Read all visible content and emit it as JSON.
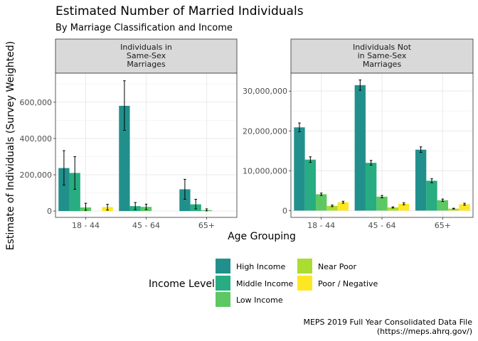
{
  "chart_data": {
    "type": "bar",
    "title": "Estimated Number of Married Individuals",
    "subtitle": "By Marriage Classification and Income",
    "xlabel": "Age Grouping",
    "ylabel": "Estimate of Individuals (Survey Weighted)",
    "caption": [
      "MEPS 2019 Full Year Consolidated Data File",
      "(https://meps.ahrq.gov/)"
    ],
    "legend": {
      "title": "Income Level",
      "placement": "bottom",
      "items": [
        "High Income",
        "Middle Income",
        "Low Income",
        "Near Poor",
        "Poor / Negative"
      ]
    },
    "colors": {
      "High Income": "#21908C",
      "Middle Income": "#27AD81",
      "Low Income": "#5DC863",
      "Near Poor": "#AADC32",
      "Poor / Negative": "#FDE725"
    },
    "categories": [
      "18 - 44",
      "45 - 64",
      "65+"
    ],
    "grid": true,
    "panels": [
      {
        "strip": [
          "Individuals in",
          "Same-Sex",
          "Marriages"
        ],
        "ylim": [
          -35000,
          760000
        ],
        "yticks": [
          0,
          200000,
          400000,
          600000
        ],
        "yticklabels": [
          "0",
          "200,000",
          "400,000",
          "600,000"
        ],
        "series": [
          {
            "name": "High Income",
            "values": [
              237000,
              580000,
              120000
            ],
            "err_low": [
              143000,
              445000,
              65000
            ],
            "err_high": [
              333000,
              718000,
              175000
            ]
          },
          {
            "name": "Middle Income",
            "values": [
              210000,
              27000,
              37000
            ],
            "err_low": [
              120000,
              8000,
              12000
            ],
            "err_high": [
              300000,
              47000,
              65000
            ]
          },
          {
            "name": "Low Income",
            "values": [
              20000,
              23000,
              5000
            ],
            "err_low": [
              4000,
              8000,
              1000
            ],
            "err_high": [
              43000,
              38000,
              12000
            ]
          },
          {
            "name": "Near Poor",
            "values": [
              0,
              0,
              0
            ],
            "err_low": [
              0,
              0,
              0
            ],
            "err_high": [
              0,
              0,
              0
            ]
          },
          {
            "name": "Poor / Negative",
            "values": [
              22000,
              0,
              0
            ],
            "err_low": [
              5000,
              0,
              0
            ],
            "err_high": [
              37000,
              0,
              0
            ]
          }
        ]
      },
      {
        "strip": [
          "Individuals Not",
          "in Same-Sex",
          "Marriages"
        ],
        "ylim": [
          -1700000,
          34500000
        ],
        "yticks": [
          0,
          10000000,
          20000000,
          30000000
        ],
        "yticklabels": [
          "0",
          "10,000,000",
          "20,000,000",
          "30,000,000"
        ],
        "series": [
          {
            "name": "High Income",
            "values": [
              20900000,
              31500000,
              15300000
            ],
            "err_low": [
              19800000,
              30200000,
              14600000
            ],
            "err_high": [
              22000000,
              32800000,
              16000000
            ]
          },
          {
            "name": "Middle Income",
            "values": [
              12800000,
              12000000,
              7500000
            ],
            "err_low": [
              12100000,
              11400000,
              7000000
            ],
            "err_high": [
              13500000,
              12600000,
              8000000
            ]
          },
          {
            "name": "Low Income",
            "values": [
              4100000,
              3500000,
              2600000
            ],
            "err_low": [
              3800000,
              3200000,
              2300000
            ],
            "err_high": [
              4400000,
              3800000,
              2900000
            ]
          },
          {
            "name": "Near Poor",
            "values": [
              1200000,
              800000,
              500000
            ],
            "err_low": [
              1000000,
              650000,
              400000
            ],
            "err_high": [
              1400000,
              950000,
              600000
            ]
          },
          {
            "name": "Poor / Negative",
            "values": [
              2100000,
              1700000,
              1600000
            ],
            "err_low": [
              1850000,
              1450000,
              1350000
            ],
            "err_high": [
              2350000,
              1950000,
              1850000
            ]
          }
        ]
      }
    ]
  }
}
